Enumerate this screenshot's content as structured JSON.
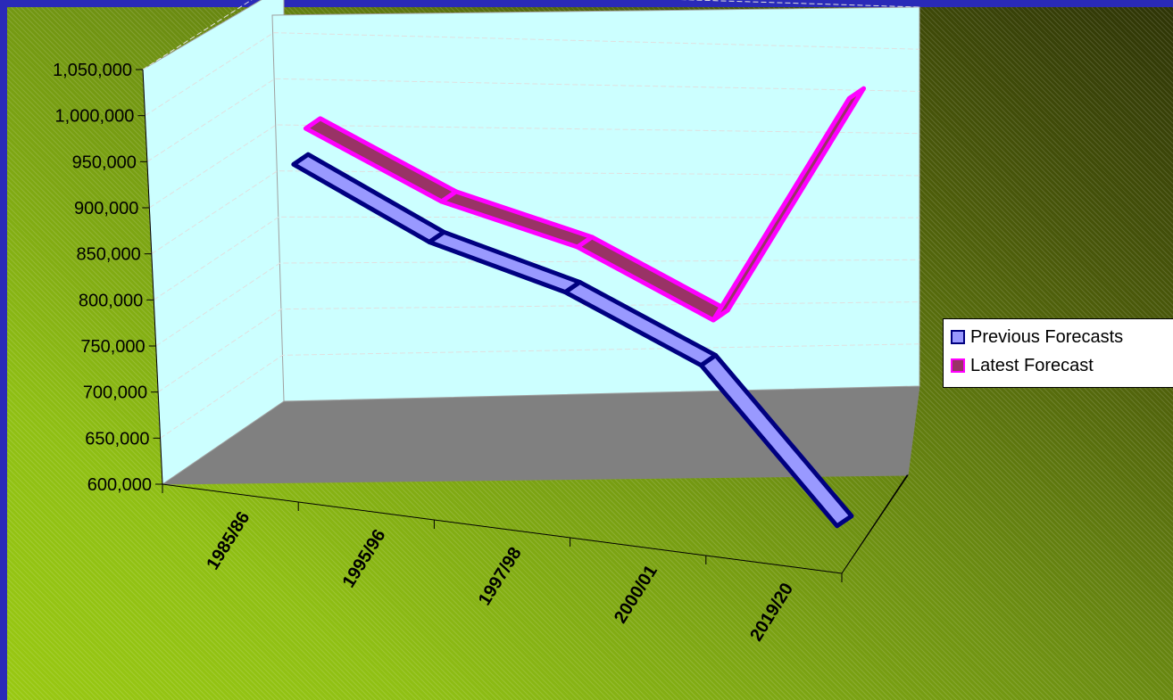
{
  "chart_data": {
    "type": "line",
    "categories": [
      "1985/86",
      "1995/96",
      "1997/98",
      "2000/01",
      "2019/20"
    ],
    "series": [
      {
        "name": "Previous Forecasts",
        "values": [
          910000,
          845000,
          810000,
          750000,
          595000
        ],
        "face_color": "#9999ff",
        "edge_color": "#000080"
      },
      {
        "name": "Latest Forecast",
        "values": [
          940000,
          880000,
          850000,
          790000,
          1050000
        ],
        "face_color": "#993366",
        "edge_color": "#ff00ff"
      }
    ],
    "y_tick_labels": [
      "600,000",
      "650,000",
      "700,000",
      "750,000",
      "800,000",
      "850,000",
      "900,000",
      "950,000",
      "1,000,000",
      "1,050,000"
    ],
    "ylim": [
      600000,
      1050000
    ],
    "title": "",
    "xlabel": "",
    "ylabel": "",
    "grid": true,
    "legend_position": "right",
    "style": "3d-ribbon"
  },
  "colors": {
    "wall": "#ccffff",
    "floor": "#808080",
    "frame_border": "#2a2ab8"
  }
}
